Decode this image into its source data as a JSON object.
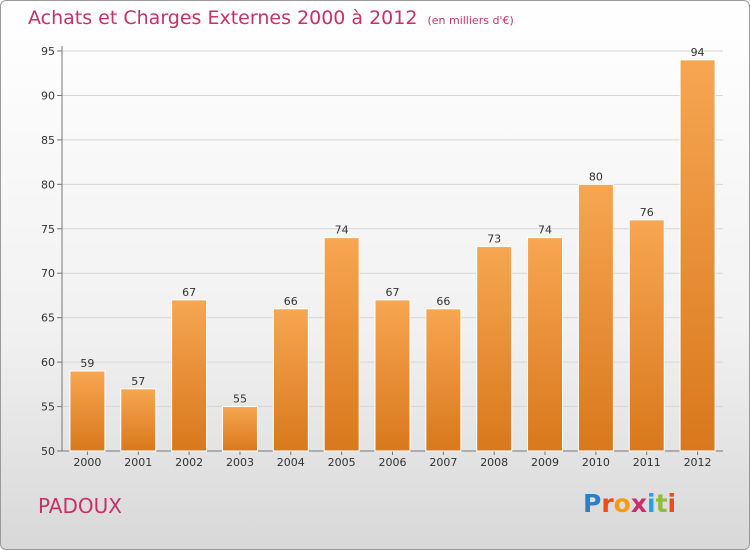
{
  "header": {
    "title": "Achats et Charges Externes 2000 à 2012",
    "subtitle": "(en milliers d'€)"
  },
  "footer": {
    "commune": "PADOUX",
    "logo_text": "Proxiti",
    "logo_colors": [
      "#2a7fc6",
      "#e94e1b",
      "#f39c12",
      "#c8306a",
      "#2a9fd8",
      "#8dbf3b",
      "#e94e1b"
    ]
  },
  "colors": {
    "bar_top": "#f7a652",
    "bar_bottom": "#d9781c",
    "title": "#c8306a"
  },
  "chart_data": {
    "type": "bar",
    "categories": [
      "2000",
      "2001",
      "2002",
      "2003",
      "2004",
      "2005",
      "2006",
      "2007",
      "2008",
      "2009",
      "2010",
      "2011",
      "2012"
    ],
    "values": [
      59,
      57,
      67,
      55,
      66,
      74,
      67,
      66,
      73,
      74,
      80,
      76,
      94
    ],
    "ylim": [
      50,
      95
    ],
    "yticks": [
      50,
      55,
      60,
      65,
      70,
      75,
      80,
      85,
      90,
      95
    ],
    "grid": true,
    "title": "Achats et Charges Externes 2000 à 2012",
    "subtitle": "(en milliers d'€)"
  }
}
